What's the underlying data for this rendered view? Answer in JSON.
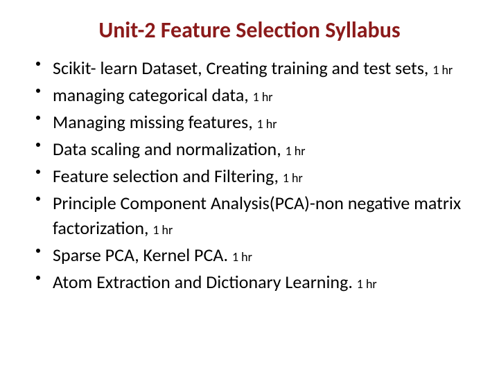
{
  "title": {
    "text": "Unit-2 Feature Selection Syllabus",
    "color": "#8b1a1a",
    "fontsize": 32
  },
  "body": {
    "text_color": "#000000",
    "fontsize_main": 26,
    "fontsize_duration": 18,
    "bullet_color": "#000000"
  },
  "items": [
    {
      "text": "Scikit- learn Dataset, Creating training and test sets, ",
      "duration": "1 hr"
    },
    {
      "text": "managing categorical data, ",
      "duration": "1 hr"
    },
    {
      "text": "Managing missing features, ",
      "duration": "1 hr"
    },
    {
      "text": "Data scaling and normalization, ",
      "duration": "1 hr"
    },
    {
      "text": "Feature selection and Filtering, ",
      "duration": "1 hr"
    },
    {
      "text": "Principle Component Analysis(PCA)-non negative matrix factorization, ",
      "duration": "1 hr"
    },
    {
      "text": "Sparse PCA, Kernel PCA. ",
      "duration": "1 hr"
    },
    {
      "text": "Atom Extraction and Dictionary Learning. ",
      "duration": "1 hr"
    }
  ]
}
